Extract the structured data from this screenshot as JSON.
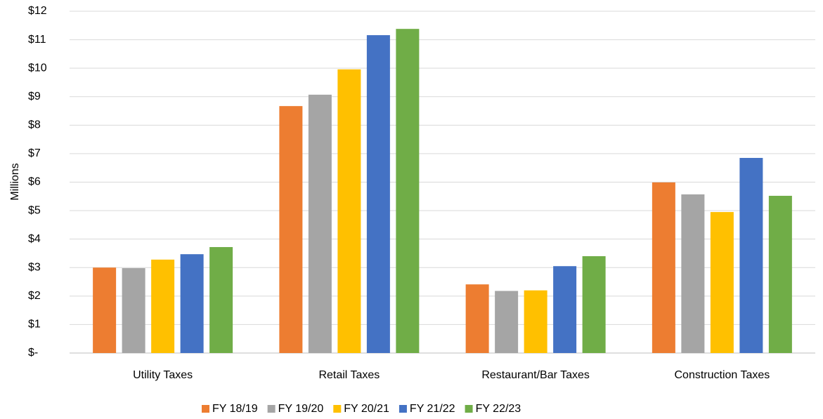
{
  "chart_data": {
    "type": "bar",
    "y_label": "Millions",
    "categories": [
      "Utility Taxes",
      "Retail Taxes",
      "Restaurant/Bar Taxes",
      "Construction Taxes"
    ],
    "series": [
      {
        "name": "FY 18/19",
        "color": "#ed7d31",
        "values": [
          3.0,
          8.67,
          2.41,
          5.99
        ]
      },
      {
        "name": "FY 19/20",
        "color": "#a5a5a5",
        "values": [
          2.98,
          9.07,
          2.18,
          5.57
        ]
      },
      {
        "name": "FY 20/21",
        "color": "#ffc000",
        "values": [
          3.28,
          9.96,
          2.2,
          4.95
        ]
      },
      {
        "name": "FY 21/22",
        "color": "#4472c4",
        "values": [
          3.47,
          11.16,
          3.05,
          6.85
        ]
      },
      {
        "name": "FY 22/23",
        "color": "#70ad47",
        "values": [
          3.72,
          11.38,
          3.4,
          5.52
        ]
      }
    ],
    "ylim": [
      0,
      12
    ],
    "yticks": [
      {
        "value": 0,
        "label": "$-"
      },
      {
        "value": 1,
        "label": "$1"
      },
      {
        "value": 2,
        "label": "$2"
      },
      {
        "value": 3,
        "label": "$3"
      },
      {
        "value": 4,
        "label": "$4"
      },
      {
        "value": 5,
        "label": "$5"
      },
      {
        "value": 6,
        "label": "$6"
      },
      {
        "value": 7,
        "label": "$7"
      },
      {
        "value": 8,
        "label": "$8"
      },
      {
        "value": 9,
        "label": "$9"
      },
      {
        "value": 10,
        "label": "$10"
      },
      {
        "value": 11,
        "label": "$11"
      },
      {
        "value": 12,
        "label": "$12"
      }
    ],
    "grid": true,
    "legend": "bottom"
  }
}
